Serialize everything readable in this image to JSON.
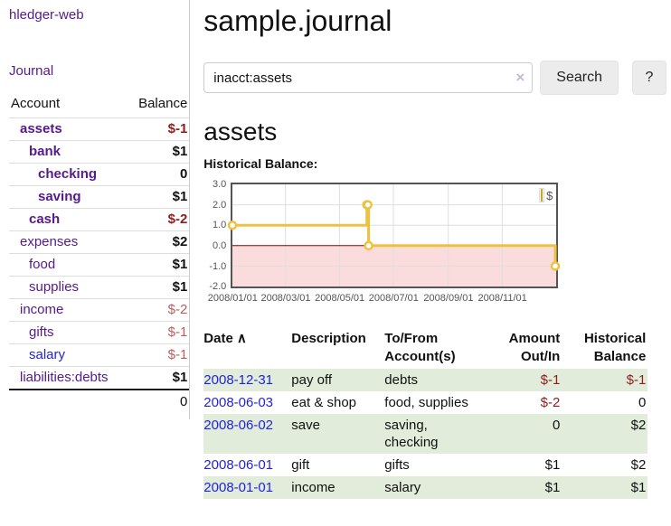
{
  "app_title": "hledger-web",
  "colors": {
    "link_purple": "#551a8b",
    "link_blue": "#2222dd",
    "negative_strong": "#8f1d1d",
    "negative_light": "#b2605f",
    "row_stripe_green": "#e1edda",
    "chart_line": "#edc240",
    "chart_negative_fill": "#fbdcdc",
    "chart_zero_line": "#8b0000",
    "chart_border": "#545454"
  },
  "sidebar": {
    "journal_link": "Journal",
    "accounts": {
      "col_account": "Account",
      "col_balance": "Balance",
      "rows": [
        {
          "name": "assets",
          "balance": "$-1"
        },
        {
          "name": "bank",
          "balance": "$1"
        },
        {
          "name": "checking",
          "balance": "0"
        },
        {
          "name": "saving",
          "balance": "$1"
        },
        {
          "name": "cash",
          "balance": "$-2"
        },
        {
          "name": "expenses",
          "balance": "$2"
        },
        {
          "name": "food",
          "balance": "$1"
        },
        {
          "name": "supplies",
          "balance": "$1"
        },
        {
          "name": "income",
          "balance": "$-2"
        },
        {
          "name": "gifts",
          "balance": "$-1"
        },
        {
          "name": "salary",
          "balance": "$-1"
        },
        {
          "name": "liabilities:debts",
          "balance": "$1"
        }
      ],
      "total": "0"
    }
  },
  "main": {
    "title": "sample.journal",
    "search": {
      "value": "inacct:assets",
      "clear_icon": "×",
      "search_button": "Search",
      "help_button": "?"
    },
    "account_title": "assets",
    "chart_heading": "Historical Balance:"
  },
  "chart_data": {
    "type": "line",
    "step": true,
    "title": "Historical Balance:",
    "legend": "$",
    "series": [
      {
        "name": "$",
        "points": [
          [
            "2008-01-01",
            1
          ],
          [
            "2008-06-01",
            2
          ],
          [
            "2008-06-02",
            2
          ],
          [
            "2008-06-03",
            0
          ],
          [
            "2008-12-31",
            -1
          ]
        ]
      }
    ],
    "xlim": [
      "2008-01-01",
      "2009-01-01"
    ],
    "ylim": [
      -2,
      3
    ],
    "xticks": [
      {
        "v": "2008-01-01",
        "label": "2008/01/01"
      },
      {
        "v": "2008-03-01",
        "label": "2008/03/01"
      },
      {
        "v": "2008-05-01",
        "label": "2008/05/01"
      },
      {
        "v": "2008-07-01",
        "label": "2008/07/01"
      },
      {
        "v": "2008-09-01",
        "label": "2008/09/01"
      },
      {
        "v": "2008-11-01",
        "label": "2008/11/01"
      }
    ],
    "yticks": [
      {
        "v": 3,
        "label": "3.0"
      },
      {
        "v": 2,
        "label": "2.0"
      },
      {
        "v": 1,
        "label": "1.0"
      },
      {
        "v": 0,
        "label": "0.0"
      },
      {
        "v": -1,
        "label": "-1.0"
      },
      {
        "v": -2,
        "label": "-2.0"
      }
    ],
    "grid": true,
    "legend_position": "top-right",
    "negative_region_shaded": true
  },
  "register": {
    "headers": {
      "date": "Date",
      "sort_icon": "∧",
      "description": "Description",
      "accounts": "To/From Account(s)",
      "amount": "Amount Out/In",
      "balance": "Historical Balance"
    },
    "rows": [
      {
        "date": "2008-12-31",
        "description": "pay off",
        "accounts": "debts",
        "amount": "$-1",
        "balance": "$-1"
      },
      {
        "date": "2008-06-03",
        "description": "eat & shop",
        "accounts": "food, supplies",
        "amount": "$-2",
        "balance": "0"
      },
      {
        "date": "2008-06-02",
        "description": "save",
        "accounts": "saving, checking",
        "amount": "0",
        "balance": "$2"
      },
      {
        "date": "2008-06-01",
        "description": "gift",
        "accounts": "gifts",
        "amount": "$1",
        "balance": "$2"
      },
      {
        "date": "2008-01-01",
        "description": "income",
        "accounts": "salary",
        "amount": "$1",
        "balance": "$1"
      }
    ]
  }
}
